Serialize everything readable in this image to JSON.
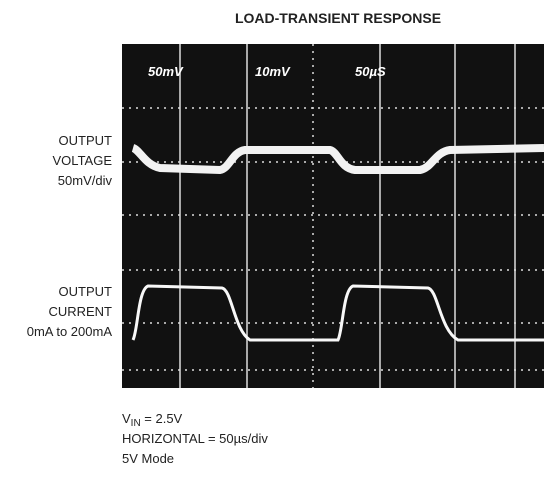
{
  "title": "LOAD-TRANSIENT RESPONSE",
  "screen_labels": [
    "50mV",
    "10mV",
    "50µS"
  ],
  "left_labels": {
    "voltage": [
      "OUTPUT",
      "VOLTAGE",
      "50mV/div"
    ],
    "current": [
      "OUTPUT",
      "CURRENT",
      "0mA to 200mA"
    ]
  },
  "notes": {
    "vin": {
      "symbol": "V",
      "subscript": "IN",
      "rest": " = 2.5V"
    },
    "horizontal": "HORIZONTAL = 50µs/div",
    "mode": "5V Mode"
  }
}
